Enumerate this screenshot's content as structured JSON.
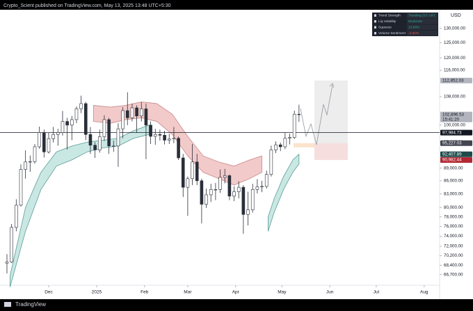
{
  "header": "Crypto_Scient published on TradingView.com, May 13, 2025 13:48 UTC+5:30",
  "footer": "TradingView",
  "chart_data": {
    "type": "candlestick",
    "currency": "USD",
    "log_scale": true,
    "grid": false,
    "xlim": [
      -1.5,
      283
    ],
    "xticks": [
      {
        "value": 30,
        "label": "Dec"
      },
      {
        "value": 61,
        "label": "2025"
      },
      {
        "value": 92,
        "label": "Feb"
      },
      {
        "value": 120,
        "label": "Mar"
      },
      {
        "value": 151,
        "label": "Apr"
      },
      {
        "value": 181,
        "label": "May"
      },
      {
        "value": 212,
        "label": "Jun"
      },
      {
        "value": 242,
        "label": "Jul"
      },
      {
        "value": 273,
        "label": "Aug"
      }
    ],
    "ylim": [
      62400,
      136700
    ],
    "yticks": [
      {
        "value": 130000,
        "label": "130,000.00"
      },
      {
        "value": 125000,
        "label": "125,000.00"
      },
      {
        "value": 120000,
        "label": "120,000.00"
      },
      {
        "value": 116000,
        "label": "116,000.00"
      },
      {
        "value": 108000,
        "label": "108,000.00"
      },
      {
        "value": 100000,
        "label": "100,000.00"
      },
      {
        "value": 95446.13,
        "label": "95,446.13"
      },
      {
        "value": 89000,
        "label": "89,000.00"
      },
      {
        "value": 86000,
        "label": "86,000.00"
      },
      {
        "value": 83000,
        "label": "83,000.00"
      },
      {
        "value": 80000,
        "label": "80,000.00"
      },
      {
        "value": 78000,
        "label": "78,000.00"
      },
      {
        "value": 76000,
        "label": "76,000.00"
      },
      {
        "value": 74000,
        "label": "74,000.00"
      },
      {
        "value": 72000,
        "label": "72,000.00"
      },
      {
        "value": 70200,
        "label": "70,200.00"
      },
      {
        "value": 68400,
        "label": "68,400.00"
      },
      {
        "value": 66700,
        "label": "66,700.00"
      }
    ],
    "price_labels": [
      {
        "value": 112852.03,
        "label": "112,852.03",
        "color": "#b2b5be",
        "text_color": "#131722"
      },
      {
        "value": 102896.53,
        "label": "102,896.53",
        "sublabel": "15:41:20",
        "color": "#b2b5be",
        "text_color": "#131722"
      },
      {
        "value": 97984.73,
        "label": "97,984.73",
        "color": "#131722",
        "text_color": "#ffffff"
      },
      {
        "value": 95227.03,
        "label": "95,227.03",
        "color": "#434651",
        "text_color": "#ffffff"
      },
      {
        "value": 92407.89,
        "label": "92,407.89",
        "color": "#1e4a4a",
        "text_color": "#ffffff"
      },
      {
        "value": 90982.44,
        "label": "90,982.44",
        "color": "#b22833",
        "text_color": "#ffffff"
      }
    ],
    "x": [
      3,
      6,
      9,
      12,
      15,
      18,
      21,
      24,
      27,
      30,
      33,
      36,
      39,
      42,
      45,
      48,
      51,
      54,
      57,
      60,
      63,
      66,
      69,
      72,
      75,
      78,
      81,
      84,
      87,
      90,
      93,
      96,
      99,
      102,
      105,
      108,
      111,
      114,
      117,
      120,
      123,
      126,
      129,
      132,
      135,
      138,
      141,
      144,
      147,
      150,
      153,
      156,
      159,
      162,
      165,
      168,
      171,
      174,
      177,
      180,
      183,
      186,
      189,
      192
    ],
    "open": [
      68800,
      69000,
      75800,
      80500,
      88700,
      90500,
      90600,
      94300,
      98000,
      93000,
      96400,
      97500,
      98000,
      101000,
      100000,
      101500,
      104500,
      106000,
      97500,
      94700,
      93500,
      96900,
      101500,
      94500,
      94500,
      99000,
      104000,
      102000,
      104800,
      102500,
      104500,
      100000,
      97000,
      97500,
      97300,
      96000,
      96300,
      96500,
      91500,
      84500,
      86500,
      90500,
      86000,
      80700,
      82800,
      84000,
      84000,
      86800,
      87200,
      82500,
      83500,
      84500,
      78500,
      79500,
      84000,
      84600,
      84700,
      87500,
      93500,
      94800,
      94300,
      96500,
      96700,
      103000
    ],
    "high": [
      70500,
      76500,
      81800,
      89900,
      93400,
      92100,
      95000,
      99600,
      98800,
      98000,
      99500,
      99000,
      103900,
      102000,
      102500,
      105200,
      108300,
      106500,
      99500,
      95500,
      98800,
      102700,
      102000,
      95900,
      100500,
      105000,
      109300,
      106000,
      105500,
      106400,
      106000,
      101000,
      99000,
      98800,
      98500,
      97700,
      99500,
      97000,
      92500,
      87000,
      95000,
      92500,
      86500,
      84200,
      85300,
      85500,
      88700,
      88800,
      87500,
      84700,
      85900,
      85000,
      83500,
      85300,
      86400,
      86000,
      88400,
      94600,
      95700,
      95400,
      97900,
      97700,
      104000,
      105700
    ],
    "low": [
      66900,
      68800,
      75000,
      80200,
      86500,
      88100,
      90100,
      93800,
      91600,
      92600,
      95400,
      94600,
      97200,
      93600,
      96000,
      100500,
      103300,
      96000,
      92500,
      91500,
      92800,
      95800,
      92500,
      93000,
      89300,
      96500,
      100000,
      101000,
      98000,
      101000,
      91200,
      95000,
      94800,
      95900,
      94900,
      95000,
      95200,
      91000,
      82300,
      78200,
      85000,
      85000,
      76600,
      79900,
      81200,
      81600,
      83200,
      85400,
      81600,
      81400,
      82000,
      74500,
      76200,
      78900,
      83100,
      83400,
      84200,
      87000,
      92700,
      93200,
      93700,
      94900,
      96300,
      100900
    ],
    "close": [
      69000,
      75800,
      80500,
      88700,
      90500,
      90600,
      94300,
      98000,
      93000,
      96400,
      97500,
      98000,
      101000,
      100000,
      101500,
      104500,
      106000,
      97500,
      94700,
      93500,
      96900,
      101500,
      94500,
      94500,
      99000,
      104000,
      102000,
      104800,
      102500,
      104500,
      100000,
      97000,
      97500,
      97300,
      96000,
      96300,
      96500,
      91500,
      84500,
      86500,
      90500,
      86000,
      80700,
      82800,
      84000,
      84000,
      86800,
      87200,
      82500,
      83500,
      84500,
      78500,
      79500,
      84000,
      84600,
      84700,
      87500,
      93500,
      94800,
      94300,
      96500,
      96700,
      103000,
      102900
    ],
    "up_color": "#ffffff",
    "down_color": "#2a2e39",
    "bands": [
      {
        "color": "#f2caca",
        "line_color": "#c98a8a",
        "x": [
          59,
          70,
          80,
          90,
          100,
          110,
          120,
          130,
          140,
          150,
          160,
          168
        ],
        "upper": [
          105500,
          105000,
          105500,
          106500,
          106000,
          103000,
          97000,
          92000,
          90500,
          89500,
          91000,
          92000
        ],
        "lower": [
          101000,
          100500,
          101500,
          102000,
          101000,
          97500,
          92000,
          88000,
          86500,
          85000,
          86500,
          88000
        ]
      },
      {
        "color": "#c9e7e3",
        "line_color": "#5a9c96",
        "x": [
          5,
          15,
          25,
          35,
          45,
          55,
          65,
          75,
          85,
          95
        ],
        "upper": [
          66500,
          80000,
          88000,
          93000,
          94500,
          95500,
          96000,
          96500,
          98500,
          100000
        ],
        "lower": [
          64500,
          75000,
          84000,
          89500,
          91000,
          93000,
          94000,
          94500,
          96500,
          97500
        ]
      },
      {
        "color": "#c9e7e3",
        "line_color": "#5a9c96",
        "x": [
          172,
          176,
          182,
          188,
          192
        ],
        "upper": [
          78000,
          82000,
          87000,
          91000,
          92407.89
        ],
        "lower": [
          75000,
          79000,
          84000,
          88000,
          90000
        ]
      }
    ],
    "indicator_table": [
      {
        "label": "Trend Strength",
        "value": "Trending (ST: UP)",
        "color": "#26a69a"
      },
      {
        "label": "Liq Volatility",
        "value": "Moderate",
        "color": "#26a69a"
      },
      {
        "label": "Squeeze",
        "value": "13.98%",
        "color": "#26a69a"
      },
      {
        "label": "Volume Sentiment",
        "value": "-1.61%",
        "color": "#ef5350"
      }
    ]
  }
}
